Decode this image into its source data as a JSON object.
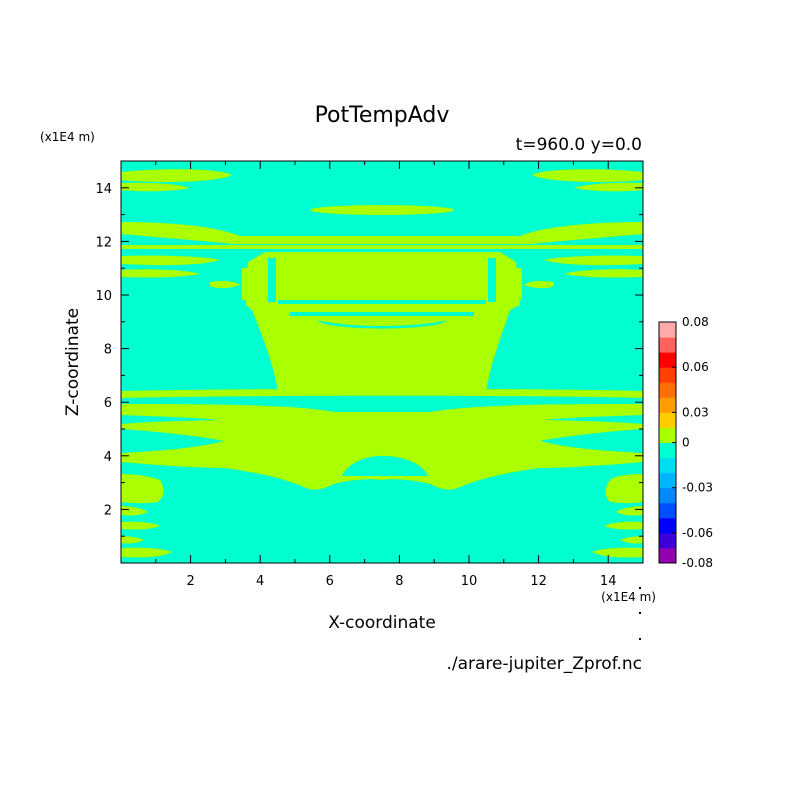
{
  "chart_data": {
    "type": "heatmap",
    "title": "PotTempAdv",
    "subtitle": "t=960.0 y=0.0",
    "xlabel": "X-coordinate",
    "ylabel": "Z-coordinate",
    "x_unit": "(x1E4 m)",
    "y_unit": "(x1E4 m)",
    "source_file": "./arare-jupiter_Zprof.nc",
    "xlim": [
      0,
      15
    ],
    "ylim": [
      0,
      15
    ],
    "x_ticks": [
      2,
      4,
      6,
      8,
      10,
      12,
      14
    ],
    "y_ticks": [
      2,
      4,
      6,
      8,
      10,
      12,
      14
    ],
    "colorbar": {
      "levels": [
        -0.08,
        -0.07,
        -0.06,
        -0.05,
        -0.04,
        -0.03,
        -0.02,
        -0.01,
        0,
        0.02,
        0.03,
        0.04,
        0.05,
        0.06,
        0.07,
        0.075,
        0.08
      ],
      "colors": [
        "#9400b0",
        "#3c00d8",
        "#0000ff",
        "#0050ff",
        "#0088ff",
        "#00b4ff",
        "#00dcf0",
        "#00ffd0",
        "#aaff00",
        "#ffcc00",
        "#ff9c00",
        "#ff7000",
        "#ff4000",
        "#ff0000",
        "#ff6060",
        "#ffaaaa"
      ],
      "tick_values": [
        0.08,
        0.06,
        0.03,
        0,
        -0.03,
        -0.06,
        -0.08
      ],
      "tick_labels": [
        "0.08",
        "0.06",
        "0.03",
        "0",
        "-0.03",
        "-0.06",
        "-0.08"
      ]
    },
    "field": {
      "background_color": "#00ffd0",
      "positive_color": "#aaff00",
      "background_range": [
        -0.01,
        0
      ],
      "positive_range": [
        0,
        0.02
      ]
    },
    "grid": false
  }
}
